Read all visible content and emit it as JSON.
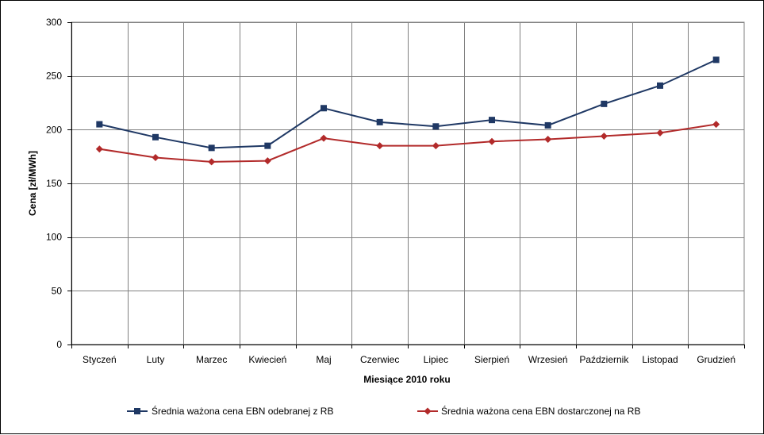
{
  "chart_data": {
    "type": "line",
    "title": "",
    "xlabel": "Miesiące 2010  roku",
    "ylabel": "Cena [zł/MWh]",
    "ylim": [
      0,
      300
    ],
    "yticks": [
      0,
      50,
      100,
      150,
      200,
      250,
      300
    ],
    "grid": true,
    "legend_position": "bottom",
    "categories": [
      "Styczeń",
      "Luty",
      "Marzec",
      "Kwiecień",
      "Maj",
      "Czerwiec",
      "Lipiec",
      "Sierpień",
      "Wrzesień",
      "Październik",
      "Listopad",
      "Grudzień"
    ],
    "series": [
      {
        "name": "Średnia ważona cena EBN odebranej z RB",
        "color": "#1f3864",
        "marker": "square",
        "values": [
          205,
          193,
          183,
          185,
          220,
          207,
          203,
          209,
          204,
          224,
          241,
          265
        ]
      },
      {
        "name": "Średnia ważona cena EBN dostarczonej na RB",
        "color": "#b22a2a",
        "marker": "diamond",
        "values": [
          182,
          174,
          170,
          171,
          192,
          185,
          185,
          189,
          191,
          194,
          197,
          205
        ]
      }
    ]
  }
}
